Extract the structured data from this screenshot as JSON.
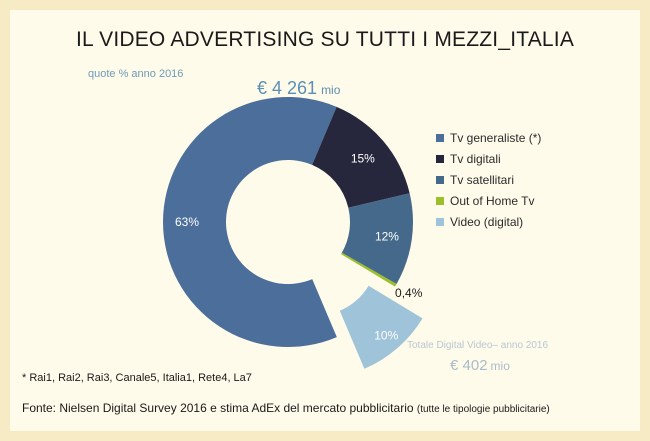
{
  "title": "IL VIDEO ADVERTISING SU TUTTI I MEZZI_ITALIA",
  "subtitle": "quote % anno 2016",
  "total": {
    "value": "€ 4 261",
    "unit": "mio"
  },
  "chart_data": {
    "type": "pie",
    "variant": "donut",
    "title": "IL VIDEO ADVERTISING SU TUTTI I MEZZI_ITALIA",
    "subtitle": "quote % anno 2016",
    "categories": [
      "Tv generaliste (*)",
      "Tv digitali",
      "Tv satellitari",
      "Out of Home Tv",
      "Video (digital)"
    ],
    "values": [
      63,
      15,
      12,
      0.4,
      10
    ],
    "value_labels": [
      "63%",
      "15%",
      "12%",
      "0,4%",
      "10%"
    ],
    "colors": [
      "#4b6e9b",
      "#26263d",
      "#45698a",
      "#9cbf2c",
      "#9fc3d8"
    ],
    "exploded": [
      "Video (digital)"
    ],
    "legend_position": "right"
  },
  "digital_video": {
    "label": "Totale Digital Video– anno 2016",
    "value": "€ 402",
    "unit": "mio"
  },
  "footnote": "* Rai1, Rai2, Rai3, Canale5, Italia1, Rete4, La7",
  "source": {
    "main": "Fonte: Nielsen Digital Survey 2016 e stima AdEx del mercato pubblicitario",
    "note": "(tutte le tipologie pubblicitarie)"
  }
}
